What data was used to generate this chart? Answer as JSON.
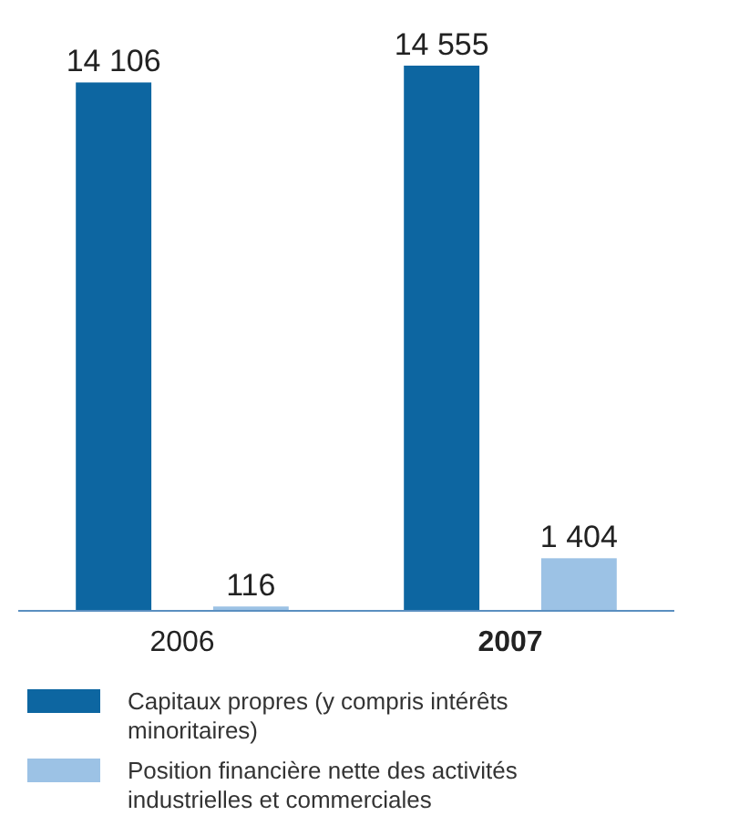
{
  "chart_data": {
    "type": "bar",
    "categories": [
      "2006",
      "2007"
    ],
    "series": [
      {
        "name": "Capitaux propres (y compris intérêts minoritaires)",
        "color": "#0d66a1",
        "values": [
          14106,
          14555
        ],
        "value_labels": [
          "14 106",
          "14 555"
        ]
      },
      {
        "name": "Position financière nette des activités industrielles et commerciales",
        "color": "#9cc2e5",
        "values": [
          116,
          1404
        ],
        "value_labels": [
          "116",
          "1 404"
        ]
      }
    ],
    "legend": "bottom"
  }
}
